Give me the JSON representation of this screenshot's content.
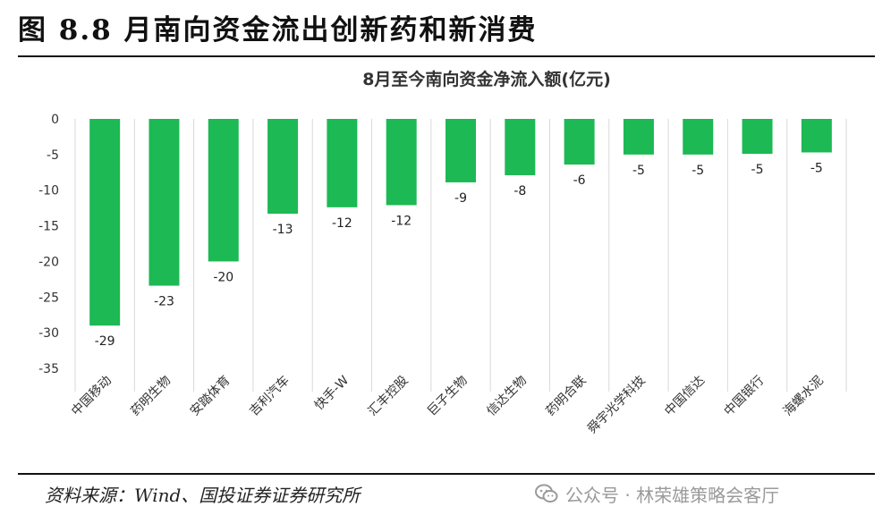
{
  "figure": {
    "title": "图 8.8 月南向资金流出创新药和新消费",
    "source": "资料来源：Wind、国投证券证券研究所",
    "watermark": "公众号 · 林荣雄策略会客厅",
    "watermark_icon": "wechat-icon"
  },
  "colors": {
    "bar": "#1db954",
    "grid": "#d9d9d9",
    "rule": "#111111",
    "watermark": "#9a9a9a"
  },
  "chart_data": {
    "type": "bar",
    "title": "8月至今南向资金净流入额(亿元)",
    "xlabel": "",
    "ylabel": "",
    "categories": [
      "中国移动",
      "药明生物",
      "安踏体育",
      "吉利汽车",
      "快手-W",
      "汇丰控股",
      "巨子生物",
      "信达生物",
      "药明合联",
      "舜宇光学科技",
      "中国信达",
      "中国银行",
      "海螺水泥"
    ],
    "values": [
      -29,
      -23.4,
      -20,
      -13.3,
      -12.4,
      -12.1,
      -8.9,
      -7.9,
      -6.4,
      -5,
      -5,
      -4.9,
      -4.7
    ],
    "data_labels": [
      "-29",
      "-23",
      "-20",
      "-13",
      "-12",
      "-12",
      "-9",
      "-8",
      "-6",
      "-5",
      "-5",
      "-5",
      "-5"
    ],
    "yticks": [
      0,
      -5,
      -10,
      -15,
      -20,
      -25,
      -30,
      -35
    ],
    "ytick_labels": [
      "0",
      "-5",
      "-10",
      "-15",
      "-20",
      "-25",
      "-30",
      "-35"
    ],
    "ylim": [
      -35,
      0
    ],
    "grid": "vertical category separators",
    "legend": "none"
  }
}
